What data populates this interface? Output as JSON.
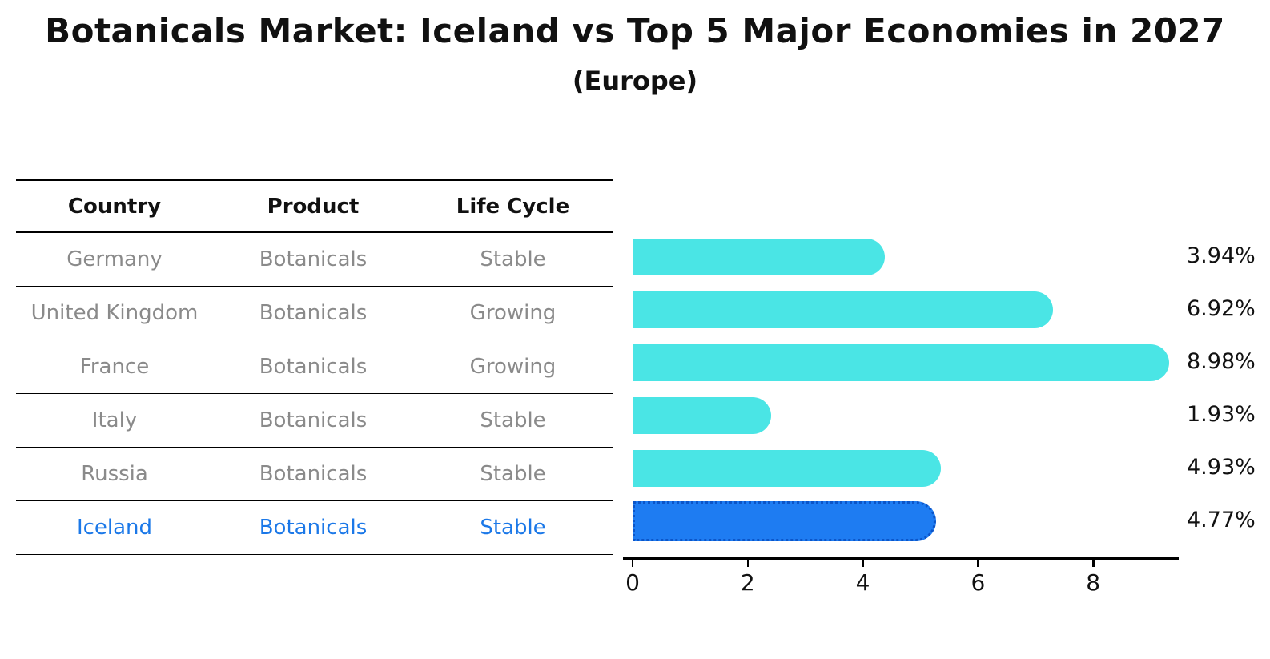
{
  "title": "Botanicals Market: Iceland vs Top 5 Major Economies in 2027",
  "subtitle": "(Europe)",
  "table": {
    "headers": [
      "Country",
      "Product",
      "Life Cycle"
    ],
    "rows": [
      {
        "country": "Germany",
        "product": "Botanicals",
        "life_cycle": "Stable"
      },
      {
        "country": "United Kingdom",
        "product": "Botanicals",
        "life_cycle": "Growing"
      },
      {
        "country": "France",
        "product": "Botanicals",
        "life_cycle": "Growing"
      },
      {
        "country": "Italy",
        "product": "Botanicals",
        "life_cycle": "Stable"
      },
      {
        "country": "Russia",
        "product": "Botanicals",
        "life_cycle": "Stable"
      },
      {
        "country": "Iceland",
        "product": "Botanicals",
        "life_cycle": "Stable"
      }
    ]
  },
  "chart_data": {
    "type": "bar",
    "orientation": "horizontal",
    "title": "Botanicals Market: Iceland vs Top 5 Major Economies in 2027",
    "subtitle": "(Europe)",
    "categories": [
      "Germany",
      "United Kingdom",
      "France",
      "Italy",
      "Russia",
      "Iceland"
    ],
    "values": [
      3.94,
      6.92,
      8.98,
      1.93,
      4.93,
      4.77
    ],
    "value_labels": [
      "3.94%",
      "6.92%",
      "8.98%",
      "1.93%",
      "4.93%",
      "4.77%"
    ],
    "highlight_index": 5,
    "x_ticks": [
      0,
      2,
      4,
      6,
      8
    ],
    "x_tick_labels": [
      "0",
      "2",
      "4",
      "6",
      "8"
    ],
    "xlim": [
      0,
      9.5
    ],
    "grid": false,
    "legend": false,
    "bar_color": "#4ae5e5",
    "highlight_bar_color": "#1e7cf2",
    "highlight_border_color": "#0c55c8",
    "table_text_color": "#8a8a8a",
    "highlight_text_color": "#1b78e8"
  }
}
